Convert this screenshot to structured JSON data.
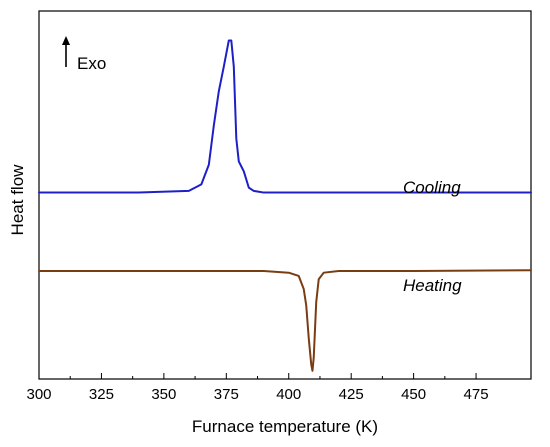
{
  "chart_data": {
    "type": "line",
    "xlabel": "Furnace temperature (K)",
    "ylabel": "Heat flow",
    "xlim": [
      300,
      497
    ],
    "ylim": [
      -0.35,
      1.9
    ],
    "x_ticks": [
      300,
      325,
      350,
      375,
      400,
      425,
      450,
      475
    ],
    "y_ticks_shown": false,
    "grid": false,
    "annotation": {
      "text": "Exo",
      "arrow": "up"
    },
    "series": [
      {
        "name": "Cooling",
        "color": "#1f1fc8",
        "x": [
          300,
          340,
          360,
          365,
          368,
          370,
          372,
          374,
          376,
          377,
          378,
          379,
          380,
          381,
          382,
          384,
          386,
          390,
          400,
          450,
          497
        ],
        "y": [
          0.79,
          0.79,
          0.8,
          0.84,
          0.96,
          1.2,
          1.41,
          1.56,
          1.72,
          1.72,
          1.56,
          1.12,
          0.98,
          0.95,
          0.92,
          0.82,
          0.8,
          0.79,
          0.79,
          0.79,
          0.79
        ]
      },
      {
        "name": "Heating",
        "color": "#7a3d12",
        "x": [
          300,
          350,
          390,
          400,
          404,
          406,
          407,
          408,
          409,
          409.5,
          410,
          410.5,
          411,
          412,
          414,
          420,
          450,
          497
        ],
        "y": [
          0.31,
          0.31,
          0.31,
          0.3,
          0.28,
          0.2,
          0.1,
          -0.1,
          -0.26,
          -0.3,
          -0.22,
          -0.05,
          0.12,
          0.26,
          0.3,
          0.31,
          0.31,
          0.315
        ]
      }
    ],
    "series_labels_on_chart": [
      "Cooling",
      "Heating"
    ]
  }
}
